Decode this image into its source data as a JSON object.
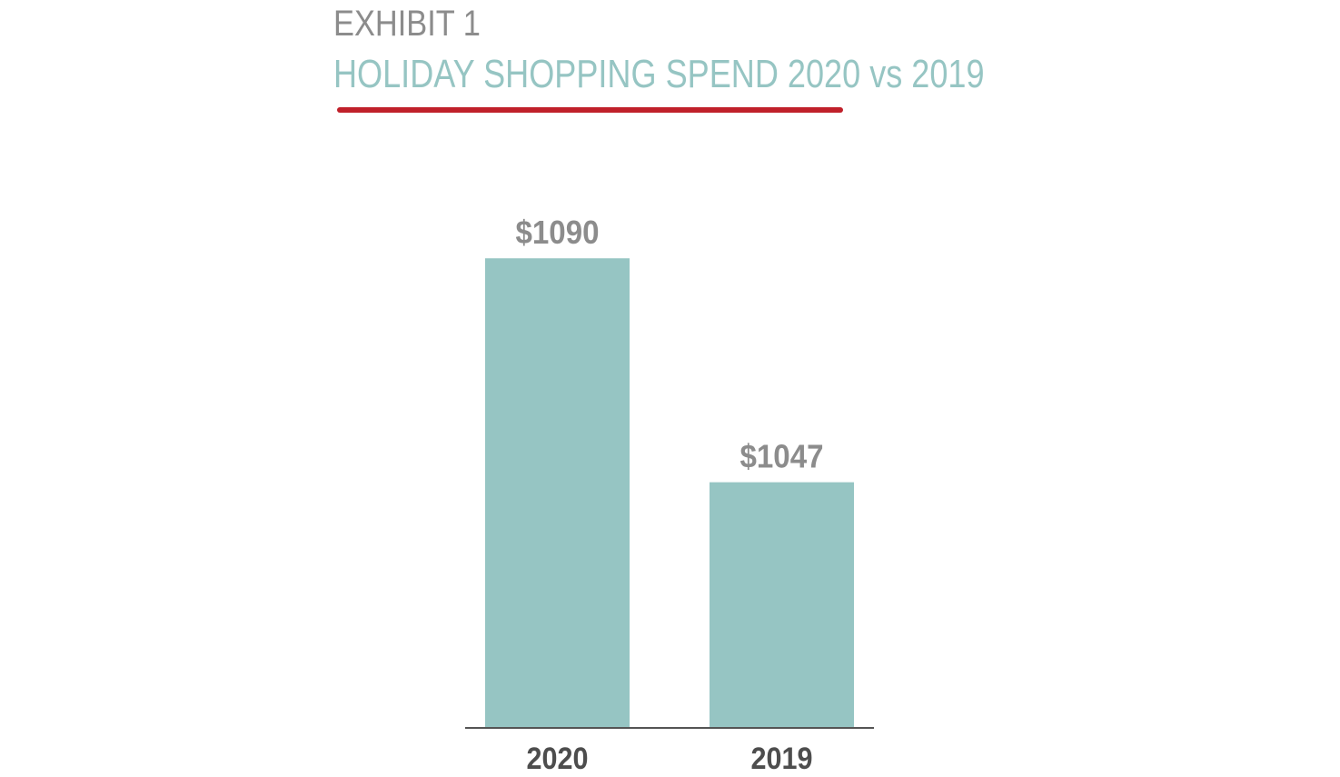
{
  "header": {
    "exhibit": "EXHIBIT 1",
    "title": "HOLIDAY SHOPPING SPEND 2020 vs 2019"
  },
  "colors": {
    "bar": "#96c5c3",
    "title": "#96c5c3",
    "exhibit": "#8c8c8c",
    "underline": "#c0202a",
    "value_label": "#8c8c8c",
    "tick_label": "#4d4d4d",
    "axis": "#555555"
  },
  "chart_data": {
    "type": "bar",
    "title": "HOLIDAY SHOPPING SPEND 2020 vs 2019",
    "categories": [
      "2020",
      "2019"
    ],
    "values": [
      1090,
      1047
    ],
    "value_labels": [
      "$1090",
      "$1047"
    ],
    "xlabel": "",
    "ylabel": "",
    "ylim": [
      1000,
      1104
    ],
    "grid": false,
    "legend": "none"
  }
}
